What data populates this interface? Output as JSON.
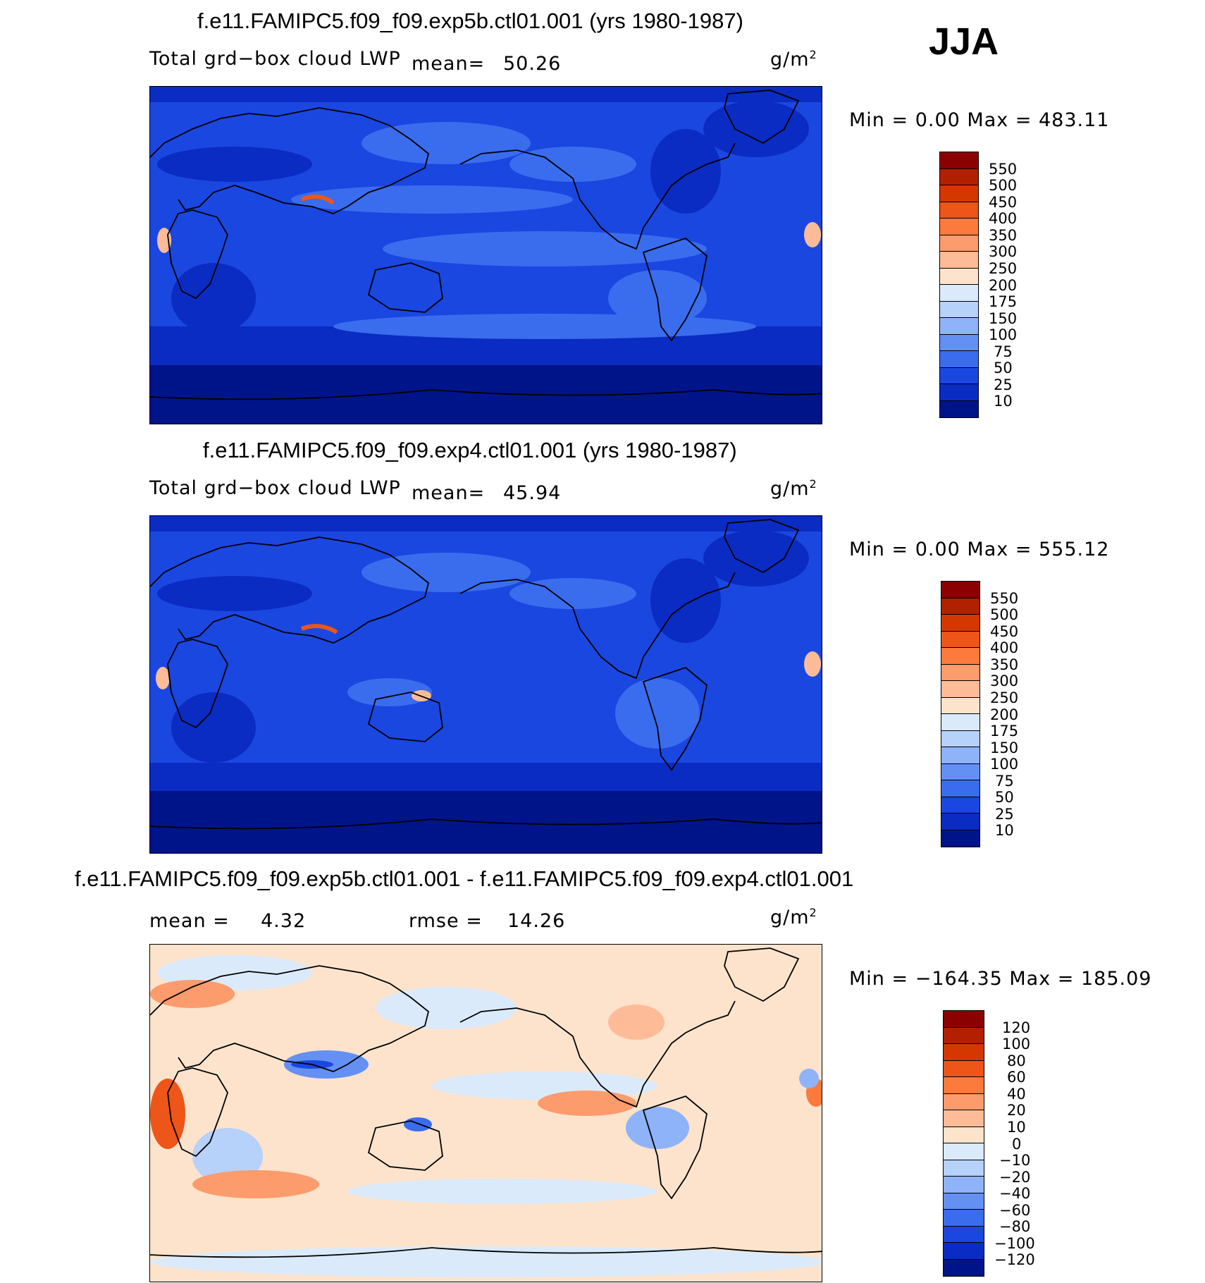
{
  "season": "JJA",
  "units_prefix": "g/m",
  "units_exp": "2",
  "panels": [
    {
      "title": "f.e11.FAMIPC5.f09_f09.exp5b.ctl01.001 (yrs 1980-1987)",
      "variable": "Total grd−box cloud LWP",
      "mean_label": "mean=",
      "mean_value": "50.26",
      "minmax": "Min =    0.00 Max = 483.11",
      "levels": [
        "550",
        "500",
        "450",
        "400",
        "350",
        "300",
        "250",
        "200",
        "175",
        "150",
        "100",
        "75",
        "50",
        "25",
        "10"
      ],
      "colors": [
        "#8b0000",
        "#b22000",
        "#d43800",
        "#ee5518",
        "#fb7a3c",
        "#fc9b6c",
        "#fdbc97",
        "#fde3cc",
        "#dbeafb",
        "#b6d1fa",
        "#8fb3f8",
        "#6490f3",
        "#3a6cee",
        "#1a47e0",
        "#0a2cc2",
        "#001489"
      ]
    },
    {
      "title": "f.e11.FAMIPC5.f09_f09.exp4.ctl01.001 (yrs 1980-1987)",
      "variable": "Total grd−box cloud LWP",
      "mean_label": "mean=",
      "mean_value": "45.94",
      "minmax": "Min =    0.00 Max = 555.12",
      "levels": [
        "550",
        "500",
        "450",
        "400",
        "350",
        "300",
        "250",
        "200",
        "175",
        "150",
        "100",
        "75",
        "50",
        "25",
        "10"
      ],
      "colors": [
        "#8b0000",
        "#b22000",
        "#d43800",
        "#ee5518",
        "#fb7a3c",
        "#fc9b6c",
        "#fdbc97",
        "#fde3cc",
        "#dbeafb",
        "#b6d1fa",
        "#8fb3f8",
        "#6490f3",
        "#3a6cee",
        "#1a47e0",
        "#0a2cc2",
        "#001489"
      ]
    },
    {
      "title": "f.e11.FAMIPC5.f09_f09.exp5b.ctl01.001 - f.e11.FAMIPC5.f09_f09.exp4.ctl01.001",
      "mean_label": "mean =",
      "mean_value": "4.32",
      "rmse_label": "rmse =",
      "rmse_value": "14.26",
      "minmax": "Min = −164.35 Max = 185.09",
      "levels": [
        "120",
        "100",
        "80",
        "60",
        "40",
        "20",
        "10",
        "0",
        "−10",
        "−20",
        "−40",
        "−60",
        "−80",
        "−100",
        "−120"
      ],
      "colors": [
        "#8b0000",
        "#b22000",
        "#d43800",
        "#ee5518",
        "#fb7a3c",
        "#fc9b6c",
        "#fdbc97",
        "#fde3cc",
        "#dbeafb",
        "#b6d1fa",
        "#8fb3f8",
        "#6490f3",
        "#3a6cee",
        "#1a47e0",
        "#0a2cc2",
        "#001489"
      ]
    }
  ]
}
